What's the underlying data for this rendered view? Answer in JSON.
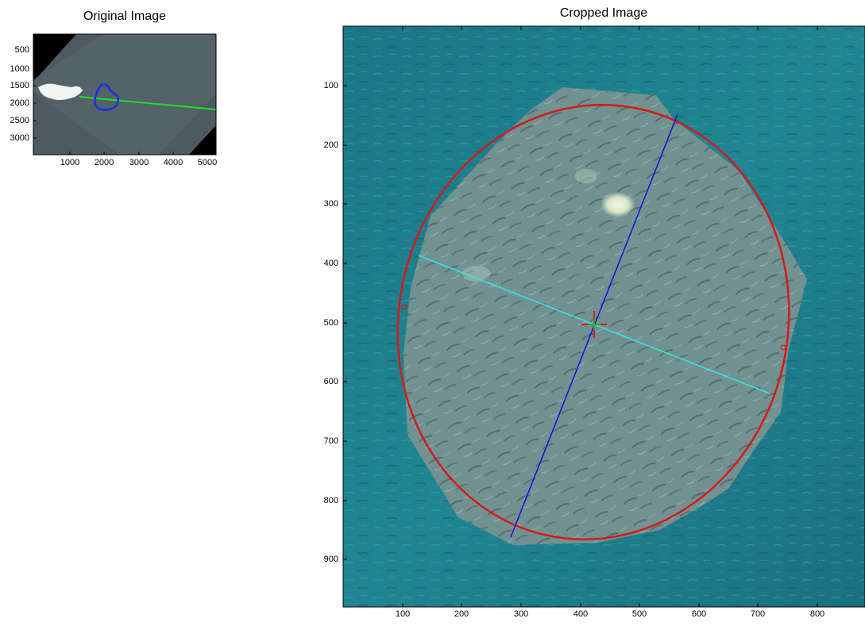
{
  "panels": {
    "original": {
      "title": "Original Image",
      "x_ticks": [
        "1000",
        "2000",
        "3000",
        "4000",
        "5000"
      ],
      "y_ticks": [
        "500",
        "1000",
        "1500",
        "2000",
        "2500",
        "3000"
      ]
    },
    "cropped": {
      "title": "Cropped Image",
      "x_ticks": [
        "100",
        "200",
        "300",
        "400",
        "500",
        "600",
        "700",
        "800"
      ],
      "y_ticks": [
        "100",
        "200",
        "300",
        "400",
        "500",
        "600",
        "700",
        "800",
        "900"
      ]
    }
  },
  "colors": {
    "ocean": "#1f7f8e",
    "school": "#6f8c8a",
    "ellipse": "#d41a1a",
    "major_axis": "#1010e0",
    "minor_axis": "#30e8e8",
    "track_line": "#20e020",
    "outline": "#1a2fe0"
  }
}
